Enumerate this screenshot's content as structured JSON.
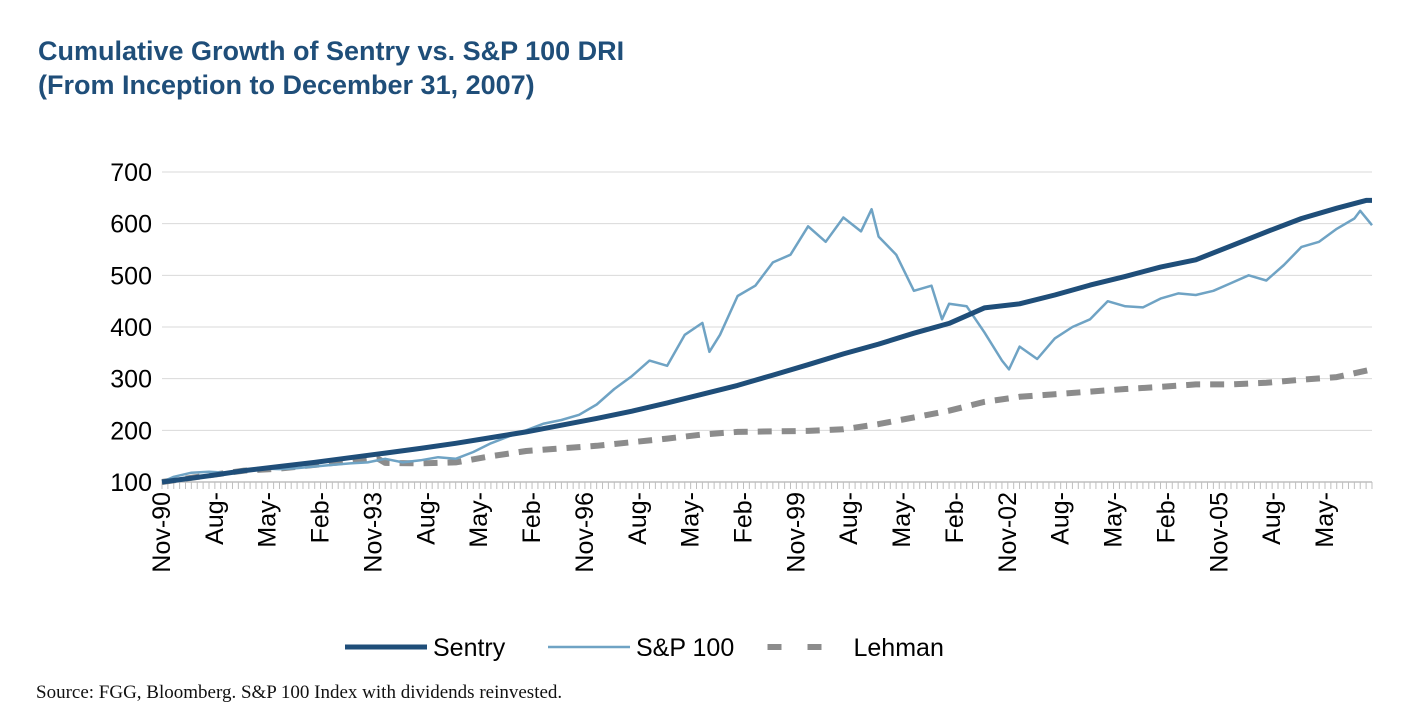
{
  "title": {
    "line1": "Cumulative Growth of Sentry vs. S&P 100 DRI",
    "line2": "(From Inception to December 31, 2007)"
  },
  "source": "Source:  FGG, Bloomberg.  S&P 100 Index with dividends reinvested.",
  "colors": {
    "sentry": "#1f4e79",
    "sp100": "#6fa3c4",
    "lehman": "#8c8c8c",
    "grid": "#d9d9d9"
  },
  "chart_data": {
    "type": "line",
    "ylim": [
      100,
      700
    ],
    "yticks": [
      100,
      200,
      300,
      400,
      500,
      600,
      700
    ],
    "xlim": [
      1990.833,
      2008.0
    ],
    "xticks": [
      {
        "label": "Nov-90",
        "x": 1990.833
      },
      {
        "label": "Aug-",
        "x": 1991.583
      },
      {
        "label": "May-",
        "x": 1992.333
      },
      {
        "label": "Feb-",
        "x": 1993.083
      },
      {
        "label": "Nov-93",
        "x": 1993.833
      },
      {
        "label": "Aug-",
        "x": 1994.583
      },
      {
        "label": "May-",
        "x": 1995.333
      },
      {
        "label": "Feb-",
        "x": 1996.083
      },
      {
        "label": "Nov-96",
        "x": 1996.833
      },
      {
        "label": "Aug-",
        "x": 1997.583
      },
      {
        "label": "May-",
        "x": 1998.333
      },
      {
        "label": "Feb-",
        "x": 1999.083
      },
      {
        "label": "Nov-99",
        "x": 1999.833
      },
      {
        "label": "Aug-",
        "x": 2000.583
      },
      {
        "label": "May-",
        "x": 2001.333
      },
      {
        "label": "Feb-",
        "x": 2002.083
      },
      {
        "label": "Nov-02",
        "x": 2002.833
      },
      {
        "label": "Aug-",
        "x": 2003.583
      },
      {
        "label": "May-",
        "x": 2004.333
      },
      {
        "label": "Feb-",
        "x": 2005.083
      },
      {
        "label": "Nov-05",
        "x": 2005.833
      },
      {
        "label": "Aug-",
        "x": 2006.583
      },
      {
        "label": "May-",
        "x": 2007.333
      }
    ],
    "legend_position": "bottom",
    "grid": "horizontal",
    "series": [
      {
        "name": "Sentry",
        "style": "solid-thick",
        "points": [
          [
            1990.833,
            100
          ],
          [
            1991.5,
            112
          ],
          [
            1992.0,
            122
          ],
          [
            1992.5,
            130
          ],
          [
            1993.0,
            138
          ],
          [
            1993.5,
            147
          ],
          [
            1994.0,
            156
          ],
          [
            1994.5,
            165
          ],
          [
            1995.0,
            175
          ],
          [
            1995.5,
            186
          ],
          [
            1996.0,
            197
          ],
          [
            1996.5,
            210
          ],
          [
            1997.0,
            223
          ],
          [
            1997.5,
            237
          ],
          [
            1998.0,
            253
          ],
          [
            1998.5,
            270
          ],
          [
            1999.0,
            287
          ],
          [
            1999.5,
            307
          ],
          [
            2000.0,
            327
          ],
          [
            2000.5,
            348
          ],
          [
            2001.0,
            367
          ],
          [
            2001.5,
            388
          ],
          [
            2002.0,
            407
          ],
          [
            2002.5,
            437
          ],
          [
            2003.0,
            445
          ],
          [
            2003.5,
            462
          ],
          [
            2004.0,
            481
          ],
          [
            2004.5,
            498
          ],
          [
            2005.0,
            516
          ],
          [
            2005.5,
            530
          ],
          [
            2006.0,
            557
          ],
          [
            2006.5,
            584
          ],
          [
            2007.0,
            610
          ],
          [
            2007.5,
            630
          ],
          [
            2007.917,
            645
          ],
          [
            2008.0,
            645
          ]
        ]
      },
      {
        "name": "S&P 100",
        "style": "solid-thin",
        "points": [
          [
            1990.833,
            100
          ],
          [
            1991.0,
            110
          ],
          [
            1991.25,
            118
          ],
          [
            1991.5,
            120
          ],
          [
            1991.75,
            118
          ],
          [
            1992.0,
            124
          ],
          [
            1992.25,
            126
          ],
          [
            1992.5,
            125
          ],
          [
            1992.75,
            127
          ],
          [
            1993.0,
            130
          ],
          [
            1993.25,
            133
          ],
          [
            1993.5,
            136
          ],
          [
            1993.75,
            138
          ],
          [
            1994.0,
            145
          ],
          [
            1994.25,
            138
          ],
          [
            1994.5,
            142
          ],
          [
            1994.75,
            148
          ],
          [
            1995.0,
            145
          ],
          [
            1995.25,
            158
          ],
          [
            1995.5,
            175
          ],
          [
            1995.75,
            188
          ],
          [
            1996.0,
            200
          ],
          [
            1996.25,
            213
          ],
          [
            1996.5,
            220
          ],
          [
            1996.75,
            230
          ],
          [
            1997.0,
            250
          ],
          [
            1997.25,
            280
          ],
          [
            1997.5,
            305
          ],
          [
            1997.75,
            335
          ],
          [
            1998.0,
            325
          ],
          [
            1998.25,
            385
          ],
          [
            1998.5,
            408
          ],
          [
            1998.6,
            352
          ],
          [
            1998.75,
            385
          ],
          [
            1999.0,
            460
          ],
          [
            1999.25,
            480
          ],
          [
            1999.5,
            525
          ],
          [
            1999.75,
            540
          ],
          [
            2000.0,
            595
          ],
          [
            2000.25,
            565
          ],
          [
            2000.5,
            612
          ],
          [
            2000.75,
            585
          ],
          [
            2000.9,
            628
          ],
          [
            2001.0,
            575
          ],
          [
            2001.25,
            540
          ],
          [
            2001.5,
            470
          ],
          [
            2001.75,
            480
          ],
          [
            2001.9,
            415
          ],
          [
            2002.0,
            445
          ],
          [
            2002.25,
            440
          ],
          [
            2002.5,
            390
          ],
          [
            2002.75,
            335
          ],
          [
            2002.85,
            318
          ],
          [
            2003.0,
            362
          ],
          [
            2003.25,
            338
          ],
          [
            2003.5,
            378
          ],
          [
            2003.75,
            400
          ],
          [
            2004.0,
            415
          ],
          [
            2004.25,
            450
          ],
          [
            2004.5,
            440
          ],
          [
            2004.75,
            438
          ],
          [
            2005.0,
            455
          ],
          [
            2005.25,
            465
          ],
          [
            2005.5,
            462
          ],
          [
            2005.75,
            470
          ],
          [
            2006.0,
            485
          ],
          [
            2006.25,
            500
          ],
          [
            2006.5,
            490
          ],
          [
            2006.75,
            520
          ],
          [
            2007.0,
            555
          ],
          [
            2007.25,
            565
          ],
          [
            2007.5,
            590
          ],
          [
            2007.75,
            610
          ],
          [
            2007.833,
            625
          ],
          [
            2008.0,
            597
          ]
        ]
      },
      {
        "name": "Lehman",
        "style": "dashed",
        "points": [
          [
            1990.833,
            100
          ],
          [
            1991.5,
            113
          ],
          [
            1992.0,
            122
          ],
          [
            1992.5,
            126
          ],
          [
            1993.0,
            133
          ],
          [
            1993.5,
            140
          ],
          [
            1993.9,
            145
          ],
          [
            1994.0,
            137
          ],
          [
            1994.5,
            136
          ],
          [
            1995.0,
            138
          ],
          [
            1995.5,
            150
          ],
          [
            1996.0,
            160
          ],
          [
            1996.5,
            165
          ],
          [
            1997.0,
            170
          ],
          [
            1997.5,
            177
          ],
          [
            1998.0,
            184
          ],
          [
            1998.5,
            192
          ],
          [
            1999.0,
            197
          ],
          [
            1999.5,
            198
          ],
          [
            2000.0,
            199
          ],
          [
            2000.5,
            202
          ],
          [
            2001.0,
            212
          ],
          [
            2001.5,
            225
          ],
          [
            2002.0,
            238
          ],
          [
            2002.5,
            255
          ],
          [
            2003.0,
            265
          ],
          [
            2003.5,
            270
          ],
          [
            2004.0,
            275
          ],
          [
            2004.5,
            280
          ],
          [
            2005.0,
            284
          ],
          [
            2005.5,
            289
          ],
          [
            2006.0,
            289
          ],
          [
            2006.5,
            292
          ],
          [
            2007.0,
            298
          ],
          [
            2007.5,
            303
          ],
          [
            2008.0,
            318
          ]
        ]
      }
    ]
  }
}
